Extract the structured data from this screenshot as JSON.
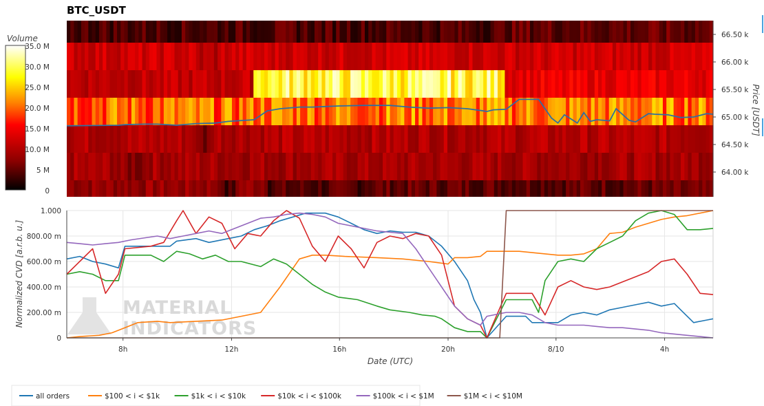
{
  "chart_data": [
    {
      "type": "heatmap",
      "title": "BTC_USDT",
      "ylabel": "Price [USDT]",
      "colorbar": {
        "title": "Volume",
        "ticks": [
          "35.0 M",
          "30.0 M",
          "25.0 M",
          "20.0 M",
          "15.0 M",
          "10.0 M",
          "5 M",
          "0"
        ],
        "range": [
          0,
          35000000
        ],
        "colors": [
          "#000000",
          "#8b0000",
          "#ff0000",
          "#ff8000",
          "#ffff00",
          "#ffffff"
        ]
      },
      "y_ticks": [
        "66.50 k",
        "66.00 k",
        "65.50 k",
        "65.00 k",
        "64.50 k",
        "64.00 k"
      ],
      "ylim": [
        63550,
        66750
      ],
      "price_bins": [
        63600,
        64100,
        64600,
        65100,
        65600,
        66100,
        66600
      ],
      "bin_volume_levels_M": [
        {
          "bin": 0,
          "segments": [
            [
              0,
              0.24,
              8
            ],
            [
              0.24,
              0.26,
              3
            ],
            [
              0.26,
              0.31,
              8
            ],
            [
              0.31,
              0.46,
              4
            ],
            [
              0.46,
              0.53,
              5
            ],
            [
              0.53,
              1.0,
              5
            ]
          ]
        },
        {
          "bin": 1,
          "segments": [
            [
              0,
              0.08,
              9
            ],
            [
              0.08,
              0.12,
              7
            ],
            [
              0.12,
              1.0,
              9
            ]
          ]
        },
        {
          "bin": 2,
          "segments": [
            [
              0,
              0.2,
              10
            ],
            [
              0.2,
              0.22,
              6
            ],
            [
              0.22,
              1.0,
              10
            ]
          ]
        },
        {
          "bin": 3,
          "segments": [
            [
              0,
              0.29,
              20
            ],
            [
              0.29,
              0.68,
              21
            ],
            [
              0.68,
              1.0,
              21
            ]
          ]
        },
        {
          "bin": 4,
          "segments": [
            [
              0,
              0.29,
              11
            ],
            [
              0.29,
              0.68,
              29
            ],
            [
              0.68,
              1.0,
              14
            ]
          ]
        },
        {
          "bin": 5,
          "segments": [
            [
              0,
              0.2,
              12
            ],
            [
              0.2,
              0.24,
              10
            ],
            [
              0.24,
              1.0,
              12
            ]
          ]
        },
        {
          "bin": 6,
          "segments": [
            [
              0,
              0.68,
              4
            ],
            [
              0.68,
              1.0,
              5
            ]
          ]
        }
      ],
      "price_series": {
        "name": "price",
        "x": [
          0,
          0.08,
          0.09,
          0.12,
          0.14,
          0.17,
          0.2,
          0.23,
          0.25,
          0.29,
          0.31,
          0.33,
          0.36,
          0.38,
          0.4,
          0.42,
          0.46,
          0.5,
          0.53,
          0.56,
          0.59,
          0.62,
          0.645,
          0.65,
          0.66,
          0.68,
          0.7,
          0.72,
          0.73,
          0.75,
          0.76,
          0.77,
          0.79,
          0.8,
          0.81,
          0.82,
          0.84,
          0.85,
          0.87,
          0.88,
          0.9,
          0.91,
          0.93,
          0.95,
          0.97,
          0.99,
          1.0
        ],
        "y": [
          64840,
          64850,
          64860,
          64870,
          64870,
          64850,
          64880,
          64890,
          64920,
          64950,
          65110,
          65150,
          65180,
          65180,
          65190,
          65200,
          65210,
          65210,
          65180,
          65160,
          65170,
          65150,
          65110,
          65100,
          65130,
          65140,
          65320,
          65320,
          65320,
          64980,
          64890,
          65040,
          64890,
          65080,
          64920,
          64950,
          64930,
          65150,
          64940,
          64910,
          65060,
          65050,
          65040,
          64990,
          65000,
          65060,
          65050
        ],
        "color": "#2e6fa3"
      }
    },
    {
      "type": "line",
      "xlabel": "Date (UTC)",
      "ylabel": "Normalized CVD [a.r.b. u.]",
      "ylim": [
        0,
        1
      ],
      "y_ticks": [
        "1.000",
        "800.00 m",
        "600.00 m",
        "400.00 m",
        "200.00 m",
        "0"
      ],
      "x_ticks": [
        "8h",
        "12h",
        "16h",
        "20h",
        "8/10",
        "4h"
      ],
      "x_tick_positions": [
        0.087,
        0.255,
        0.422,
        0.59,
        0.757,
        0.925
      ],
      "grid": true,
      "legend_position": "bottom-left",
      "series": [
        {
          "name": "all orders",
          "color": "#1f77b4",
          "x": [
            0,
            0.02,
            0.04,
            0.06,
            0.08,
            0.09,
            0.16,
            0.17,
            0.2,
            0.22,
            0.25,
            0.27,
            0.29,
            0.31,
            0.33,
            0.35,
            0.37,
            0.4,
            0.42,
            0.44,
            0.46,
            0.48,
            0.5,
            0.52,
            0.54,
            0.56,
            0.58,
            0.6,
            0.62,
            0.63,
            0.64,
            0.645,
            0.65,
            0.68,
            0.7,
            0.71,
            0.72,
            0.74,
            0.76,
            0.78,
            0.8,
            0.82,
            0.84,
            0.86,
            0.88,
            0.9,
            0.92,
            0.94,
            0.95,
            0.97,
            0.99,
            1.0
          ],
          "y": [
            0.62,
            0.64,
            0.6,
            0.58,
            0.55,
            0.72,
            0.72,
            0.76,
            0.78,
            0.75,
            0.78,
            0.8,
            0.85,
            0.88,
            0.92,
            0.95,
            0.98,
            0.98,
            0.95,
            0.9,
            0.85,
            0.82,
            0.84,
            0.83,
            0.83,
            0.8,
            0.72,
            0.6,
            0.45,
            0.3,
            0.2,
            0.1,
            0.0,
            0.17,
            0.17,
            0.17,
            0.12,
            0.12,
            0.12,
            0.18,
            0.2,
            0.18,
            0.22,
            0.24,
            0.26,
            0.28,
            0.25,
            0.27,
            0.22,
            0.12,
            0.14,
            0.15
          ]
        },
        {
          "name": "$100 < i < $1k",
          "color": "#ff7f0e",
          "x": [
            0,
            0.02,
            0.05,
            0.07,
            0.09,
            0.11,
            0.14,
            0.16,
            0.2,
            0.24,
            0.27,
            0.3,
            0.33,
            0.36,
            0.38,
            0.4,
            0.43,
            0.48,
            0.52,
            0.56,
            0.59,
            0.6,
            0.62,
            0.64,
            0.65,
            0.67,
            0.7,
            0.72,
            0.74,
            0.76,
            0.78,
            0.8,
            0.82,
            0.84,
            0.86,
            0.88,
            0.9,
            0.92,
            0.94,
            0.96,
            0.98,
            1.0
          ],
          "y": [
            0.0,
            0.01,
            0.02,
            0.04,
            0.08,
            0.12,
            0.13,
            0.12,
            0.13,
            0.14,
            0.17,
            0.2,
            0.4,
            0.62,
            0.65,
            0.65,
            0.64,
            0.63,
            0.62,
            0.6,
            0.58,
            0.63,
            0.63,
            0.64,
            0.68,
            0.68,
            0.68,
            0.67,
            0.66,
            0.65,
            0.65,
            0.66,
            0.7,
            0.82,
            0.83,
            0.87,
            0.9,
            0.93,
            0.95,
            0.96,
            0.98,
            1.0
          ]
        },
        {
          "name": "$1k < i < $10k",
          "color": "#2ca02c",
          "x": [
            0,
            0.02,
            0.04,
            0.06,
            0.08,
            0.09,
            0.13,
            0.15,
            0.17,
            0.19,
            0.21,
            0.23,
            0.25,
            0.27,
            0.3,
            0.32,
            0.34,
            0.36,
            0.38,
            0.4,
            0.42,
            0.45,
            0.48,
            0.5,
            0.53,
            0.55,
            0.57,
            0.58,
            0.6,
            0.62,
            0.64,
            0.65,
            0.68,
            0.72,
            0.73,
            0.74,
            0.76,
            0.78,
            0.8,
            0.82,
            0.84,
            0.86,
            0.88,
            0.9,
            0.92,
            0.94,
            0.96,
            0.98,
            1.0
          ],
          "y": [
            0.5,
            0.52,
            0.5,
            0.45,
            0.45,
            0.65,
            0.65,
            0.6,
            0.68,
            0.66,
            0.62,
            0.65,
            0.6,
            0.6,
            0.56,
            0.62,
            0.58,
            0.5,
            0.42,
            0.36,
            0.32,
            0.3,
            0.25,
            0.22,
            0.2,
            0.18,
            0.17,
            0.15,
            0.08,
            0.05,
            0.05,
            0.0,
            0.3,
            0.3,
            0.2,
            0.45,
            0.6,
            0.62,
            0.6,
            0.7,
            0.75,
            0.8,
            0.92,
            0.98,
            1.0,
            0.97,
            0.85,
            0.85,
            0.86
          ]
        },
        {
          "name": "$10k < i < $100k",
          "color": "#d62728",
          "x": [
            0,
            0.02,
            0.04,
            0.06,
            0.08,
            0.09,
            0.13,
            0.15,
            0.17,
            0.18,
            0.2,
            0.22,
            0.24,
            0.26,
            0.28,
            0.3,
            0.32,
            0.34,
            0.36,
            0.38,
            0.4,
            0.42,
            0.44,
            0.46,
            0.48,
            0.5,
            0.52,
            0.54,
            0.56,
            0.58,
            0.6,
            0.62,
            0.64,
            0.65,
            0.68,
            0.7,
            0.72,
            0.74,
            0.76,
            0.78,
            0.8,
            0.82,
            0.84,
            0.86,
            0.88,
            0.9,
            0.92,
            0.94,
            0.96,
            0.98,
            1.0
          ],
          "y": [
            0.5,
            0.6,
            0.7,
            0.35,
            0.5,
            0.7,
            0.72,
            0.75,
            0.92,
            1.0,
            0.82,
            0.95,
            0.9,
            0.7,
            0.82,
            0.8,
            0.92,
            1.0,
            0.94,
            0.72,
            0.6,
            0.8,
            0.7,
            0.55,
            0.75,
            0.8,
            0.78,
            0.82,
            0.8,
            0.65,
            0.25,
            0.15,
            0.1,
            0.0,
            0.35,
            0.35,
            0.35,
            0.18,
            0.4,
            0.45,
            0.4,
            0.38,
            0.4,
            0.44,
            0.48,
            0.52,
            0.6,
            0.62,
            0.5,
            0.35,
            0.34
          ]
        },
        {
          "name": "$100k < i < $1M",
          "color": "#9467bd",
          "x": [
            0,
            0.02,
            0.04,
            0.06,
            0.08,
            0.1,
            0.14,
            0.16,
            0.18,
            0.2,
            0.22,
            0.24,
            0.26,
            0.28,
            0.3,
            0.32,
            0.34,
            0.36,
            0.38,
            0.4,
            0.42,
            0.44,
            0.46,
            0.48,
            0.5,
            0.52,
            0.54,
            0.56,
            0.58,
            0.6,
            0.62,
            0.64,
            0.65,
            0.68,
            0.7,
            0.72,
            0.74,
            0.76,
            0.78,
            0.8,
            0.82,
            0.84,
            0.86,
            0.88,
            0.9,
            0.92,
            0.94,
            0.96,
            0.98,
            1.0
          ],
          "y": [
            0.75,
            0.74,
            0.73,
            0.74,
            0.75,
            0.77,
            0.8,
            0.78,
            0.8,
            0.82,
            0.84,
            0.82,
            0.86,
            0.9,
            0.94,
            0.95,
            0.97,
            0.98,
            0.97,
            0.95,
            0.9,
            0.88,
            0.86,
            0.84,
            0.83,
            0.82,
            0.7,
            0.55,
            0.4,
            0.25,
            0.15,
            0.1,
            0.17,
            0.2,
            0.2,
            0.18,
            0.12,
            0.1,
            0.1,
            0.1,
            0.09,
            0.08,
            0.08,
            0.07,
            0.06,
            0.04,
            0.03,
            0.02,
            0.01,
            0.0
          ]
        },
        {
          "name": "$1M < i < $10M",
          "color": "#8c564b",
          "x": [
            0,
            0.67,
            0.68,
            1.0
          ],
          "y": [
            0.0,
            0.0,
            1.0,
            1.0
          ]
        }
      ],
      "watermark": [
        "MATERIAL",
        "INDICATORS"
      ]
    }
  ]
}
